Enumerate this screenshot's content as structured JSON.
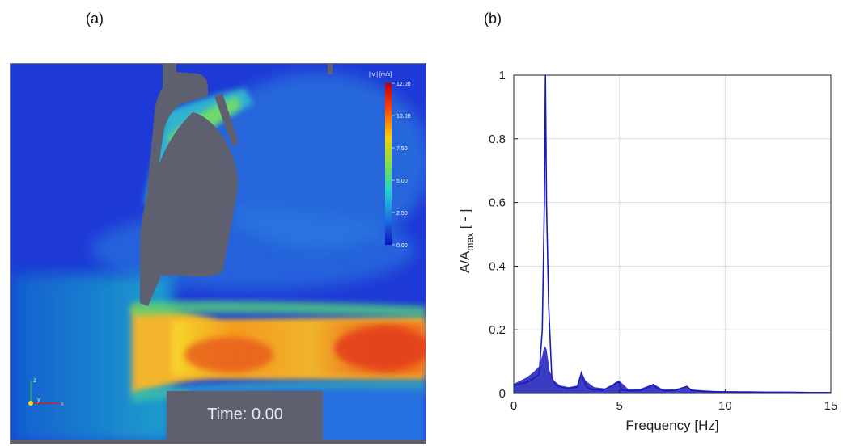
{
  "panels": {
    "a": {
      "label": "(a)",
      "colorbar": {
        "title": "| v |  [m/s]",
        "ticks": [
          "12.00",
          "10.00",
          "7.50",
          "5.00",
          "2.50",
          "0.00"
        ]
      },
      "time_text": "Time: 0.00",
      "axes_triad": {
        "z": "z",
        "y": "y",
        "x": "x"
      }
    },
    "b": {
      "label": "(b)"
    }
  },
  "colors": {
    "background_field": "#1f3fd8",
    "obstacle": "#5e6070",
    "spectrum_line": "#1a1ab8",
    "grid": "#dddddd"
  },
  "chart_data": {
    "type": "line",
    "xlabel": "Frequency [Hz]",
    "ylabel": "A/A",
    "ylabel_sub": "max",
    "ylabel_suffix": " [ - ]",
    "xlim": [
      0,
      15
    ],
    "ylim": [
      0,
      1
    ],
    "x_ticks": [
      "0",
      "5",
      "10",
      "15"
    ],
    "y_ticks": [
      "0",
      "0.2",
      "0.4",
      "0.6",
      "0.8",
      "1"
    ],
    "grid": true,
    "series": [
      {
        "x": [
          0,
          0.3,
          0.6,
          0.9,
          1.2,
          1.35,
          1.45,
          1.5,
          1.55,
          1.65,
          1.8,
          2.0,
          2.5,
          3.0,
          3.2,
          3.3,
          3.45,
          3.7,
          4.2,
          4.5,
          4.8,
          4.95,
          5.1,
          5.5,
          6.0,
          6.4,
          6.6,
          6.8,
          7.2,
          7.6,
          8.0,
          8.2,
          8.4,
          9.0,
          10.0,
          11.0,
          12.0,
          13.0,
          14.0,
          15.0
        ],
        "y": [
          0.025,
          0.03,
          0.035,
          0.045,
          0.06,
          0.2,
          0.6,
          1.0,
          0.6,
          0.28,
          0.05,
          0.025,
          0.015,
          0.02,
          0.065,
          0.045,
          0.02,
          0.012,
          0.01,
          0.02,
          0.03,
          0.038,
          0.012,
          0.008,
          0.01,
          0.02,
          0.028,
          0.015,
          0.008,
          0.01,
          0.018,
          0.022,
          0.01,
          0.006,
          0.005,
          0.005,
          0.004,
          0.004,
          0.003,
          0.003
        ]
      }
    ],
    "envelope": {
      "x": [
        0,
        0.3,
        0.6,
        0.9,
        1.2,
        1.35,
        1.45,
        1.55,
        1.7,
        1.9,
        2.2,
        2.6,
        3.0,
        3.2,
        3.4,
        3.8,
        4.4,
        4.8,
        5.0,
        5.4,
        6.0,
        6.6,
        7.0,
        7.6,
        8.1,
        8.5,
        9.5,
        11.0,
        13.0,
        15.0
      ],
      "low": [
        0.0,
        0.0,
        0.0,
        0.0,
        0.0,
        0.0,
        0.0,
        0.0,
        0.0,
        0.0,
        0.0,
        0.0,
        0.0,
        0.0,
        0.0,
        0.0,
        0.0,
        0.0,
        0.0,
        0.0,
        0.0,
        0.0,
        0.0,
        0.0,
        0.0,
        0.0,
        0.0,
        0.0,
        0.0,
        0.0
      ],
      "high": [
        0.03,
        0.04,
        0.05,
        0.065,
        0.085,
        0.12,
        0.15,
        0.14,
        0.07,
        0.04,
        0.025,
        0.02,
        0.025,
        0.07,
        0.04,
        0.02,
        0.015,
        0.035,
        0.04,
        0.015,
        0.015,
        0.03,
        0.015,
        0.012,
        0.022,
        0.012,
        0.008,
        0.006,
        0.005,
        0.004
      ]
    }
  }
}
